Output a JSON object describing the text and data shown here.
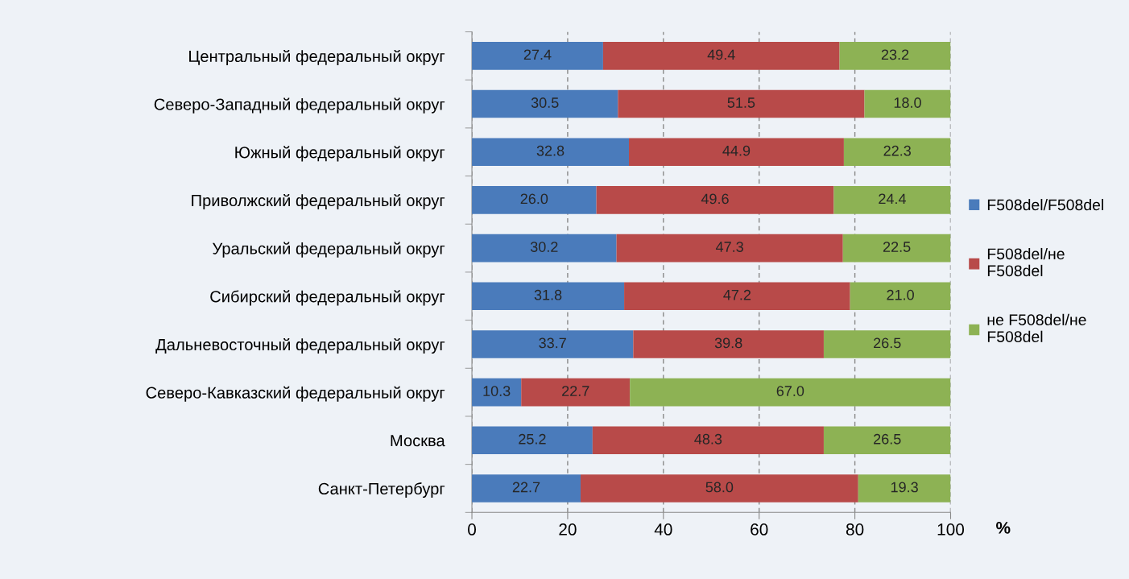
{
  "chart_data": {
    "type": "bar",
    "orientation": "horizontal",
    "stacked": true,
    "annotations": [
      "%"
    ],
    "categories": [
      "Центральный федеральный округ",
      "Северо-Западный федеральный округ",
      "Южный федеральный округ",
      "Приволжский федеральный округ",
      "Уральский федеральный округ",
      "Сибирский федеральный округ",
      "Дальневосточный федеральный округ",
      "Северо-Кавказский федеральный округ",
      "Москва",
      "Санкт-Петербург"
    ],
    "series": [
      {
        "name": "F508del/F508del",
        "color": "#4a7bbb",
        "values": [
          27.4,
          30.5,
          32.8,
          26.0,
          30.2,
          31.8,
          33.7,
          10.3,
          25.2,
          22.7
        ],
        "value_labels": [
          "27.4",
          "30.5",
          "32.8",
          "26.0",
          "30.2",
          "31.8",
          "33.7",
          "10.3",
          "25.2",
          "22.7"
        ]
      },
      {
        "name": "F508del/не\nF508del",
        "color": "#b84a49",
        "values": [
          49.4,
          51.5,
          44.9,
          49.6,
          47.3,
          47.2,
          39.8,
          22.7,
          48.3,
          58.0
        ],
        "value_labels": [
          "49.4",
          "51.5",
          "44.9",
          "49.6",
          "47.3",
          "47.2",
          "39.8",
          "22.7",
          "48.3",
          "58.0"
        ]
      },
      {
        "name": "не F508del/не\nF508del",
        "color": "#8db254",
        "values": [
          23.2,
          18.0,
          22.3,
          24.4,
          22.5,
          21.0,
          26.5,
          67.0,
          26.5,
          19.3
        ],
        "value_labels": [
          "23.2",
          "18.0",
          "22.3",
          "24.4",
          "22.5",
          "21.0",
          "26.5",
          "67.0",
          "26.5",
          "19.3"
        ]
      }
    ],
    "xlim": [
      0,
      100
    ],
    "xticks": [
      0,
      20,
      40,
      60,
      80,
      100
    ],
    "grid": "x",
    "legend": "right"
  }
}
